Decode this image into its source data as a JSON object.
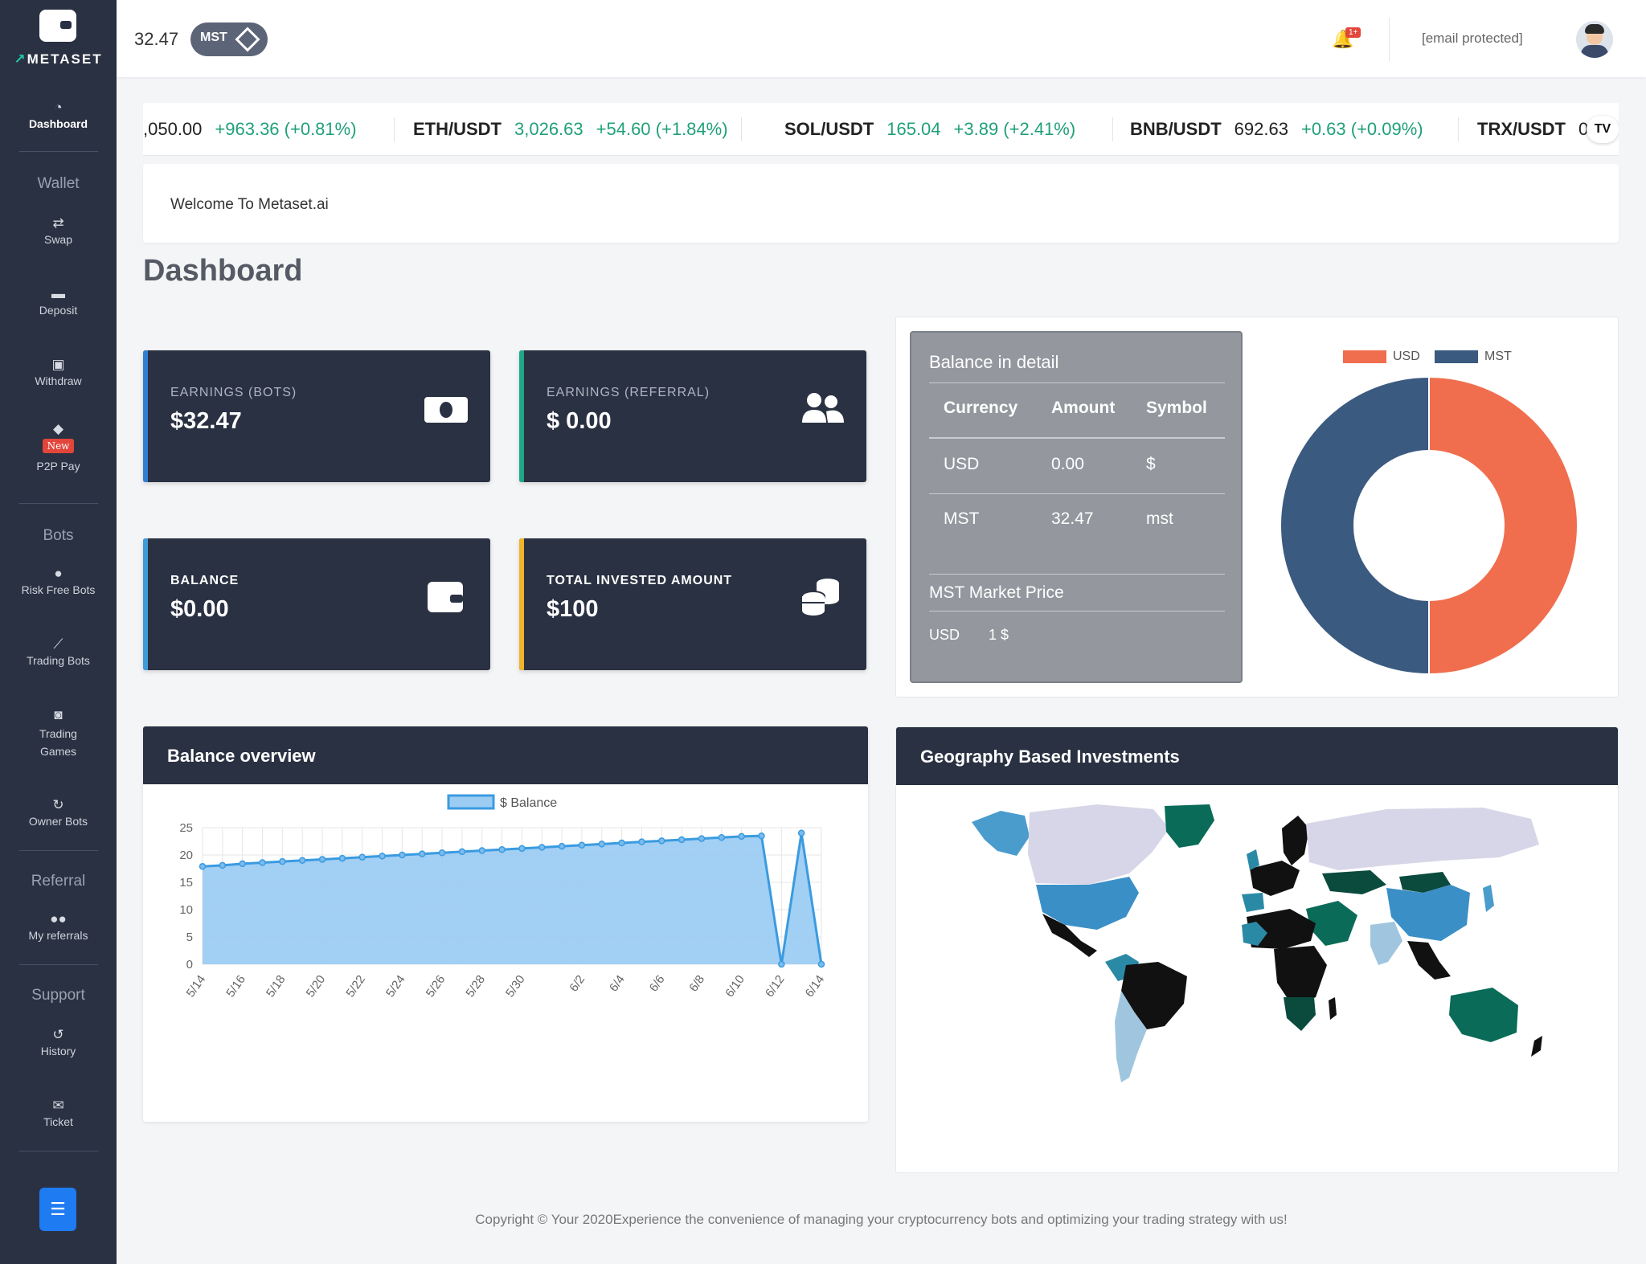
{
  "sidebar": {
    "brand": "METASET",
    "brand_accent": "M",
    "items": {
      "dashboard": "Dashboard",
      "swap": "Swap",
      "deposit": "Deposit",
      "withdraw": "Withdraw",
      "p2p_badge": "New",
      "p2p": "P2P Pay",
      "risk_free_bots": "Risk Free Bots",
      "trading_bots": "Trading Bots",
      "trading_games": "Trading Games",
      "owner_bots": "Owner Bots",
      "my_referrals": "My referrals",
      "history": "History",
      "ticket": "Ticket"
    },
    "sections": {
      "wallet": "Wallet",
      "bots": "Bots",
      "referral": "Referral",
      "support": "Support"
    }
  },
  "topbar": {
    "balance": "32.47",
    "token": "MST",
    "notification_badge": "1+",
    "user_email": "[email protected]"
  },
  "ticker": [
    {
      "symbol": "",
      "price": ",050.00",
      "change": "+963.36 (+0.81%)",
      "price_neutral": true
    },
    {
      "symbol": "ETH/USDT",
      "price": "3,026.63",
      "change": "+54.60 (+1.84%)",
      "price_neutral": false
    },
    {
      "symbol": "SOL/USDT",
      "price": "165.04",
      "change": "+3.89 (+2.41%)",
      "price_neutral": false
    },
    {
      "symbol": "BNB/USDT",
      "price": "692.63",
      "change": "+0.63 (+0.09%)",
      "price_neutral": true
    },
    {
      "symbol": "TRX/USDT",
      "price": "0",
      "change": "",
      "price_neutral": true
    }
  ],
  "welcome": "Welcome To Metaset.ai",
  "page_title": "Dashboard",
  "cards": [
    {
      "label": "EARNINGS (BOTS)",
      "value": "$32.47",
      "accent": "#2f7fd1",
      "icon": "money-bill-icon"
    },
    {
      "label": "EARNINGS (REFERRAL)",
      "value": "$ 0.00",
      "accent": "#1fa886",
      "icon": "users-icon"
    },
    {
      "label": "BALANCE",
      "value": "$0.00",
      "accent": "#3d9bd8",
      "icon": "wallet-icon"
    },
    {
      "label": "TOTAL INVESTED AMOUNT",
      "value": "$100",
      "accent": "#f0b429",
      "icon": "coins-icon"
    }
  ],
  "balance_detail": {
    "title": "Balance in detail",
    "headers": [
      "Currency",
      "Amount",
      "Symbol"
    ],
    "rows": [
      [
        "USD",
        "0.00",
        "$"
      ],
      [
        "MST",
        "32.47",
        "mst"
      ]
    ],
    "market_title": "MST Market Price",
    "market_currency": "USD",
    "market_value": "1 $"
  },
  "donut": {
    "legend": [
      {
        "name": "USD",
        "color": "#f06e4e"
      },
      {
        "name": "MST",
        "color": "#3b5a80"
      }
    ],
    "shares": [
      0.5,
      0.5
    ]
  },
  "balance_overview": {
    "title": "Balance overview"
  },
  "geo": {
    "title": "Geography Based Investments"
  },
  "chart_data": {
    "type": "area",
    "title": "",
    "xlabel": "",
    "ylabel": "",
    "ylim": [
      0,
      25
    ],
    "yticks": [
      0,
      5,
      10,
      15,
      20,
      25
    ],
    "x": [
      "5/14",
      "5/15",
      "5/16",
      "5/17",
      "5/18",
      "5/19",
      "5/20",
      "5/21",
      "5/22",
      "5/23",
      "5/24",
      "5/25",
      "5/26",
      "5/27",
      "5/28",
      "5/29",
      "5/30",
      "5/31",
      "6/1",
      "6/2",
      "6/3",
      "6/4",
      "6/5",
      "6/6",
      "6/7",
      "6/8",
      "6/9",
      "6/10",
      "6/11",
      "6/12",
      "6/13",
      "6/14"
    ],
    "xtick_labels": [
      "5/14",
      "5/16",
      "5/18",
      "5/20",
      "5/22",
      "5/24",
      "5/26",
      "5/28",
      "5/30",
      "6/2",
      "6/4",
      "6/6",
      "6/8",
      "6/10",
      "6/12",
      "6/14"
    ],
    "series": [
      {
        "name": "$ Balance",
        "color": "#3a9be0",
        "fill": "#9dccf3",
        "values": [
          17.9,
          18.1,
          18.4,
          18.6,
          18.8,
          19.0,
          19.2,
          19.4,
          19.6,
          19.8,
          20.0,
          20.2,
          20.4,
          20.6,
          20.8,
          21.0,
          21.2,
          21.4,
          21.6,
          21.8,
          22.0,
          22.2,
          22.4,
          22.6,
          22.8,
          23.0,
          23.2,
          23.4,
          23.5,
          0,
          24,
          0
        ]
      }
    ],
    "grid": true,
    "legend_position": "top"
  }
}
